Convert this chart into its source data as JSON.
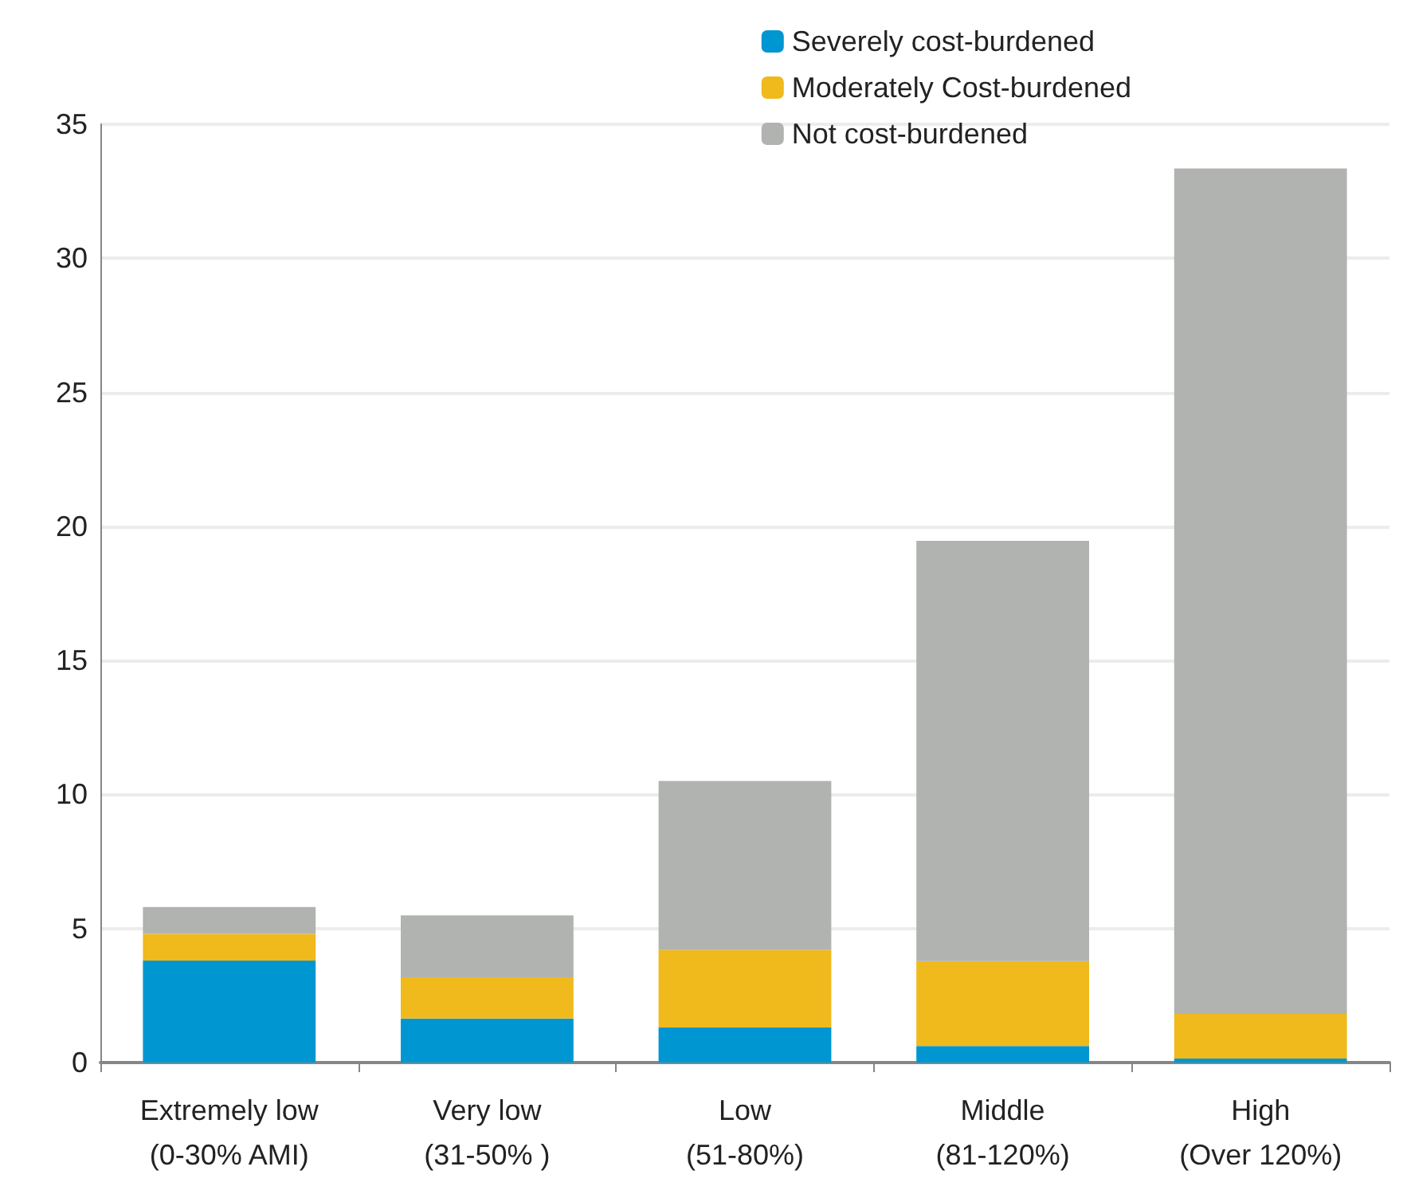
{
  "chart_data": {
    "type": "bar",
    "stacked": true,
    "categories": [
      "Extremely low\n(0-30% AMI)",
      "Very low\n(31-50% )",
      "Low\n(51-80%)",
      "Middle\n(81-120%)",
      "High\n(Over 120%)"
    ],
    "series": [
      {
        "name": "Severely cost-burdened",
        "color": "#0096d2",
        "values": [
          3.8,
          1.64,
          1.31,
          0.62,
          0.15
        ]
      },
      {
        "name": "Moderately Cost-burdened",
        "color": "#f0b91c",
        "values": [
          1.0,
          1.54,
          2.89,
          3.16,
          1.66
        ]
      },
      {
        "name": "Not cost-burdened",
        "color": "#b1b3b0",
        "values": [
          1.0,
          2.31,
          6.3,
          15.68,
          31.54
        ]
      }
    ],
    "ylim": [
      0,
      35
    ],
    "yticks": [
      0,
      5,
      10,
      15,
      20,
      25,
      30,
      35
    ],
    "grid": "y",
    "legend": "top right"
  }
}
